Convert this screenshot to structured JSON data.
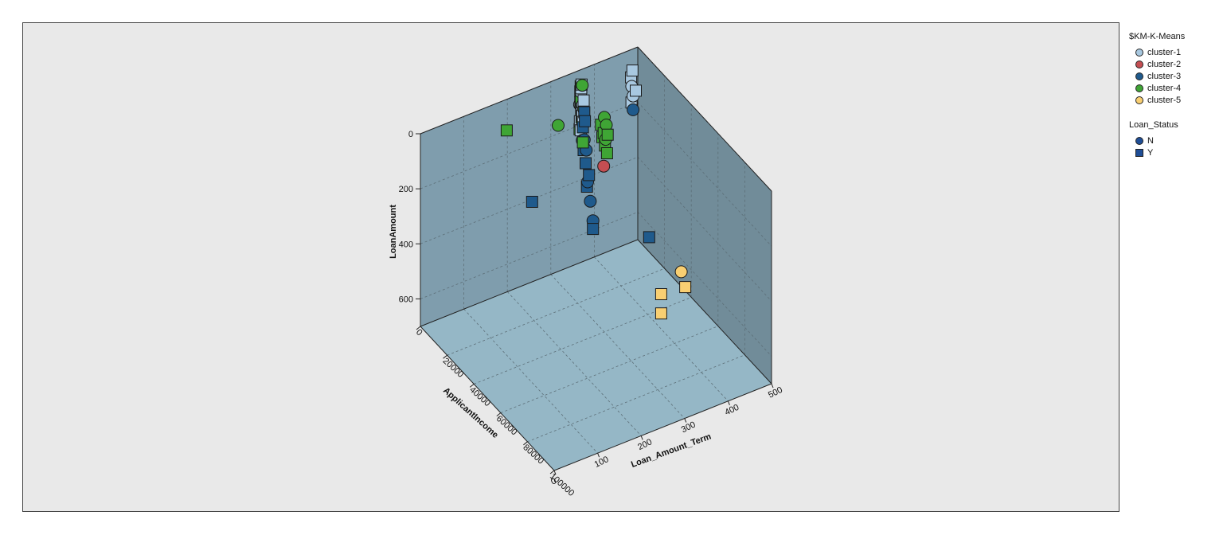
{
  "chart_data": {
    "type": "scatter",
    "subtype": "3d-scatter",
    "title": "",
    "axes": {
      "x": {
        "label": "ApplicantIncome",
        "range": [
          0,
          100000
        ],
        "ticks": [
          "0",
          "20000",
          "40000",
          "60000",
          "80000",
          "100000"
        ]
      },
      "y": {
        "label": "LoanAmount",
        "range": [
          0,
          700
        ],
        "reversed": true,
        "ticks": [
          "0",
          "200",
          "400",
          "600"
        ]
      },
      "z": {
        "label": "Loan_Amount_Term",
        "range": [
          0,
          500
        ],
        "ticks": [
          "0",
          "100",
          "200",
          "300",
          "400",
          "500"
        ]
      }
    },
    "grid": true,
    "legend_position": "right",
    "color_legend": {
      "title": "$KM-K-Means",
      "items": [
        {
          "name": "cluster-1",
          "color": "#a8c8e0"
        },
        {
          "name": "cluster-2",
          "color": "#c44e52"
        },
        {
          "name": "cluster-3",
          "color": "#1f5a8c"
        },
        {
          "name": "cluster-4",
          "color": "#3fa535"
        },
        {
          "name": "cluster-5",
          "color": "#f9cf72"
        }
      ]
    },
    "shape_legend": {
      "title": "Loan_Status",
      "items": [
        {
          "name": "N",
          "shape": "circle",
          "color": "#1f4e96"
        },
        {
          "name": "Y",
          "shape": "square",
          "color": "#1f4e96"
        }
      ]
    },
    "points": [
      {
        "x": 2500,
        "y": 60,
        "z": 360,
        "cluster": "cluster-4",
        "status": "Y"
      },
      {
        "x": 3000,
        "y": 90,
        "z": 360,
        "cluster": "cluster-4",
        "status": "Y"
      },
      {
        "x": 4000,
        "y": 30,
        "z": 360,
        "cluster": "cluster-4",
        "status": "N"
      },
      {
        "x": 3500,
        "y": 150,
        "z": 360,
        "cluster": "cluster-4",
        "status": "Y"
      },
      {
        "x": 5000,
        "y": 110,
        "z": 360,
        "cluster": "cluster-4",
        "status": "N"
      },
      {
        "x": 2000,
        "y": 200,
        "z": 360,
        "cluster": "cluster-4",
        "status": "Y"
      },
      {
        "x": 6000,
        "y": 70,
        "z": 180,
        "cluster": "cluster-4",
        "status": "Y"
      },
      {
        "x": 4500,
        "y": 170,
        "z": 360,
        "cluster": "cluster-4",
        "status": "N"
      },
      {
        "x": 2800,
        "y": 40,
        "z": 360,
        "cluster": "cluster-4",
        "status": "Y"
      },
      {
        "x": 5500,
        "y": 130,
        "z": 300,
        "cluster": "cluster-4",
        "status": "N"
      },
      {
        "x": 3300,
        "y": 120,
        "z": 360,
        "cluster": "cluster-4",
        "status": "Y"
      },
      {
        "x": 20000,
        "y": 120,
        "z": 360,
        "cluster": "cluster-4",
        "status": "Y"
      },
      {
        "x": 22000,
        "y": 80,
        "z": 360,
        "cluster": "cluster-4",
        "status": "N"
      },
      {
        "x": 21000,
        "y": 160,
        "z": 360,
        "cluster": "cluster-4",
        "status": "Y"
      },
      {
        "x": 19000,
        "y": 140,
        "z": 360,
        "cluster": "cluster-4",
        "status": "Y"
      },
      {
        "x": 23000,
        "y": 110,
        "z": 360,
        "cluster": "cluster-4",
        "status": "Y"
      },
      {
        "x": 20500,
        "y": 60,
        "z": 360,
        "cluster": "cluster-4",
        "status": "N"
      },
      {
        "x": 24000,
        "y": 95,
        "z": 300,
        "cluster": "cluster-4",
        "status": "Y"
      },
      {
        "x": 18000,
        "y": 100,
        "z": 360,
        "cluster": "cluster-4",
        "status": "Y"
      },
      {
        "x": 22500,
        "y": 180,
        "z": 360,
        "cluster": "cluster-4",
        "status": "Y"
      },
      {
        "x": 21500,
        "y": 135,
        "z": 360,
        "cluster": "cluster-4",
        "status": "N"
      },
      {
        "x": 20000,
        "y": 240,
        "z": 360,
        "cluster": "cluster-2",
        "status": "N"
      },
      {
        "x": 2500,
        "y": 100,
        "z": 360,
        "cluster": "cluster-1",
        "status": "Y"
      },
      {
        "x": 3000,
        "y": 60,
        "z": 360,
        "cluster": "cluster-1",
        "status": "N"
      },
      {
        "x": 4000,
        "y": 140,
        "z": 360,
        "cluster": "cluster-1",
        "status": "Y"
      },
      {
        "x": 3500,
        "y": 30,
        "z": 360,
        "cluster": "cluster-1",
        "status": "Y"
      },
      {
        "x": 2000,
        "y": 110,
        "z": 360,
        "cluster": "cluster-1",
        "status": "N"
      },
      {
        "x": 5000,
        "y": 80,
        "z": 360,
        "cluster": "cluster-1",
        "status": "Y"
      },
      {
        "x": 4500,
        "y": 160,
        "z": 360,
        "cluster": "cluster-1",
        "status": "Y"
      },
      {
        "x": 3800,
        "y": 120,
        "z": 360,
        "cluster": "cluster-1",
        "status": "N"
      },
      {
        "x": 2800,
        "y": 200,
        "z": 360,
        "cluster": "cluster-1",
        "status": "Y"
      },
      {
        "x": 3200,
        "y": 45,
        "z": 360,
        "cluster": "cluster-1",
        "status": "Y"
      },
      {
        "x": 4200,
        "y": 100,
        "z": 360,
        "cluster": "cluster-1",
        "status": "N"
      },
      {
        "x": 2200,
        "y": 170,
        "z": 360,
        "cluster": "cluster-1",
        "status": "Y"
      },
      {
        "x": 1500,
        "y": 90,
        "z": 480,
        "cluster": "cluster-1",
        "status": "Y"
      },
      {
        "x": 2000,
        "y": 120,
        "z": 480,
        "cluster": "cluster-1",
        "status": "N"
      },
      {
        "x": 2500,
        "y": 60,
        "z": 480,
        "cluster": "cluster-1",
        "status": "Y"
      },
      {
        "x": 3000,
        "y": 150,
        "z": 480,
        "cluster": "cluster-1",
        "status": "N"
      },
      {
        "x": 1800,
        "y": 180,
        "z": 480,
        "cluster": "cluster-1",
        "status": "Y"
      },
      {
        "x": 5000,
        "y": 120,
        "z": 480,
        "cluster": "cluster-1",
        "status": "Y"
      },
      {
        "x": 3200,
        "y": 120,
        "z": 360,
        "cluster": "cluster-3",
        "status": "Y"
      },
      {
        "x": 4500,
        "y": 180,
        "z": 360,
        "cluster": "cluster-3",
        "status": "Y"
      },
      {
        "x": 5500,
        "y": 220,
        "z": 360,
        "cluster": "cluster-3",
        "status": "N"
      },
      {
        "x": 6000,
        "y": 150,
        "z": 360,
        "cluster": "cluster-3",
        "status": "Y"
      },
      {
        "x": 4000,
        "y": 230,
        "z": 360,
        "cluster": "cluster-3",
        "status": "N"
      },
      {
        "x": 9000,
        "y": 330,
        "z": 360,
        "cluster": "cluster-3",
        "status": "Y"
      },
      {
        "x": 8000,
        "y": 360,
        "z": 360,
        "cluster": "cluster-3",
        "status": "N"
      },
      {
        "x": 6500,
        "y": 300,
        "z": 360,
        "cluster": "cluster-3",
        "status": "Y"
      },
      {
        "x": 10000,
        "y": 420,
        "z": 360,
        "cluster": "cluster-3",
        "status": "N"
      },
      {
        "x": 7500,
        "y": 380,
        "z": 360,
        "cluster": "cluster-3",
        "status": "Y"
      },
      {
        "x": 12000,
        "y": 480,
        "z": 360,
        "cluster": "cluster-3",
        "status": "N"
      },
      {
        "x": 12000,
        "y": 510,
        "z": 360,
        "cluster": "cluster-3",
        "status": "Y"
      },
      {
        "x": 5000,
        "y": 260,
        "z": 360,
        "cluster": "cluster-3",
        "status": "Y"
      },
      {
        "x": 3000,
        "y": 200,
        "z": 480,
        "cluster": "cluster-3",
        "status": "N"
      },
      {
        "x": 15000,
        "y": 600,
        "z": 480,
        "cluster": "cluster-3",
        "status": "Y"
      },
      {
        "x": 25000,
        "y": 230,
        "z": 180,
        "cluster": "cluster-3",
        "status": "Y"
      },
      {
        "x": 5500,
        "y": 120,
        "z": 360,
        "cluster": "cluster-3",
        "status": "Y"
      },
      {
        "x": 7000,
        "y": 250,
        "z": 360,
        "cluster": "cluster-3",
        "status": "N"
      },
      {
        "x": 81000,
        "y": 360,
        "z": 360,
        "cluster": "cluster-5",
        "status": "Y"
      },
      {
        "x": 63000,
        "y": 480,
        "z": 360,
        "cluster": "cluster-5",
        "status": "Y"
      },
      {
        "x": 63000,
        "y": 550,
        "z": 360,
        "cluster": "cluster-5",
        "status": "Y"
      },
      {
        "x": 39000,
        "y": 600,
        "z": 480,
        "cluster": "cluster-5",
        "status": "N"
      }
    ]
  }
}
